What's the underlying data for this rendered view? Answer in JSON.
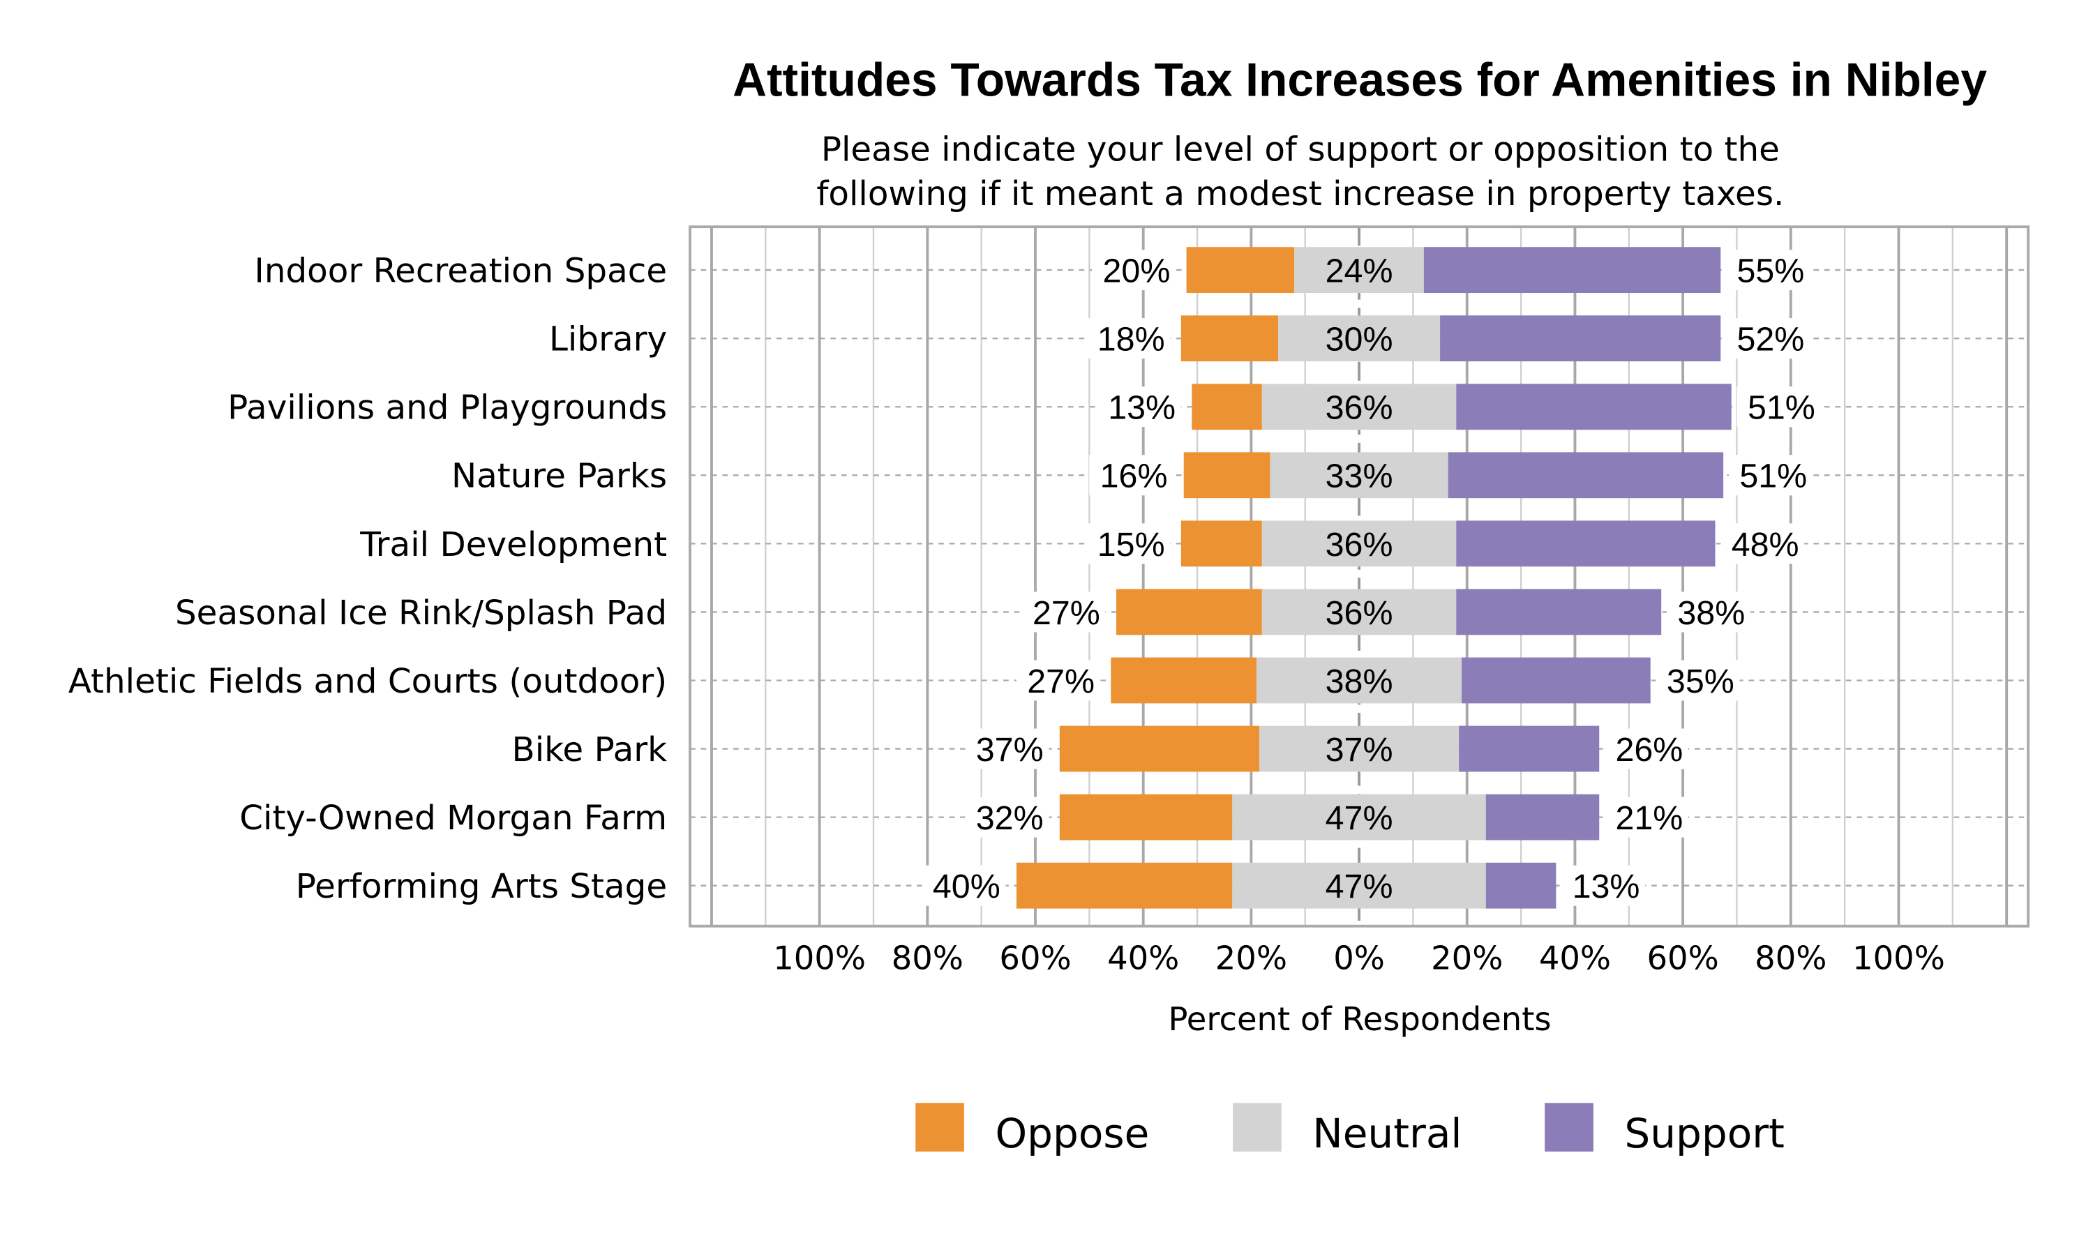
{
  "chart_data": {
    "type": "bar",
    "subtype": "diverging-stacked-horizontal",
    "title": "Attitudes Towards Tax Increases for Amenities in Nibley",
    "subtitle": [
      "Please indicate your level of support or opposition to the",
      "following if it meant a modest increase in property taxes."
    ],
    "xlabel": "Percent of Respondents",
    "ylabel": "",
    "xlim": [
      -124,
      124
    ],
    "x_ticks": [
      -100,
      -80,
      -60,
      -40,
      -20,
      0,
      20,
      40,
      60,
      80,
      100
    ],
    "x_tick_labels": [
      "100%",
      "80%",
      "60%",
      "40%",
      "20%",
      "0%",
      "20%",
      "40%",
      "60%",
      "80%",
      "100%"
    ],
    "grid": true,
    "legend_position": "bottom",
    "categories": [
      "Indoor Recreation Space",
      "Library",
      "Pavilions and Playgrounds",
      "Nature Parks",
      "Trail Development",
      "Seasonal Ice Rink/Splash Pad",
      "Athletic Fields and Courts (outdoor)",
      "Bike Park",
      "City-Owned Morgan Farm",
      "Performing Arts Stage"
    ],
    "series": [
      {
        "name": "Oppose",
        "color": "#EC9232",
        "values": [
          20,
          18,
          13,
          16,
          15,
          27,
          27,
          37,
          32,
          40
        ]
      },
      {
        "name": "Neutral",
        "color": "#D3D3D3",
        "values": [
          24,
          30,
          36,
          33,
          36,
          36,
          38,
          37,
          47,
          47
        ]
      },
      {
        "name": "Support",
        "color": "#8A7DB8",
        "values": [
          55,
          52,
          51,
          51,
          48,
          38,
          35,
          26,
          21,
          13
        ]
      }
    ]
  }
}
